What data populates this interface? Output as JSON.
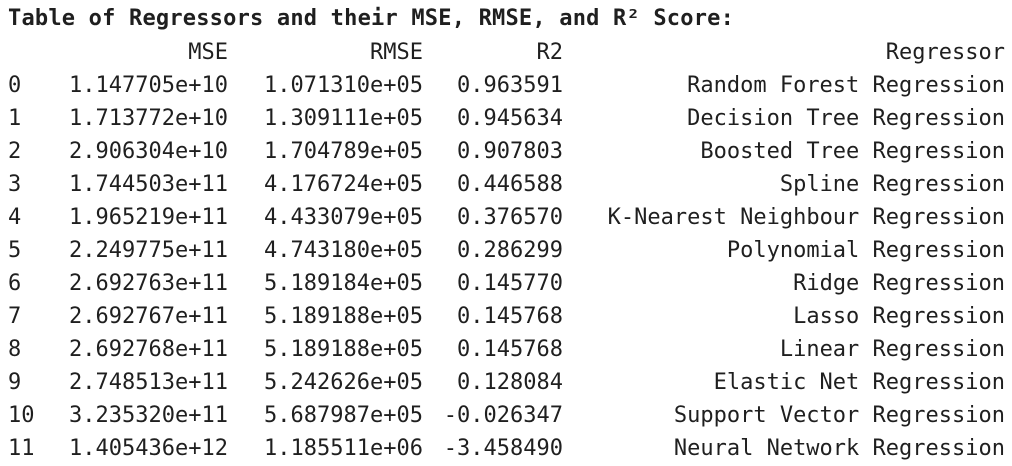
{
  "title": "Table of Regressors and their MSE, RMSE, and R² Score:",
  "table": {
    "headers": {
      "index": "",
      "mse": "MSE",
      "rmse": "RMSE",
      "r2": "R2",
      "regressor": "Regressor"
    },
    "rows": [
      {
        "index": "0",
        "mse": "1.147705e+10",
        "rmse": "1.071310e+05",
        "r2": "0.963591",
        "regressor": "Random Forest Regression"
      },
      {
        "index": "1",
        "mse": "1.713772e+10",
        "rmse": "1.309111e+05",
        "r2": "0.945634",
        "regressor": "Decision Tree Regression"
      },
      {
        "index": "2",
        "mse": "2.906304e+10",
        "rmse": "1.704789e+05",
        "r2": "0.907803",
        "regressor": "Boosted Tree Regression"
      },
      {
        "index": "3",
        "mse": "1.744503e+11",
        "rmse": "4.176724e+05",
        "r2": "0.446588",
        "regressor": "Spline Regression"
      },
      {
        "index": "4",
        "mse": "1.965219e+11",
        "rmse": "4.433079e+05",
        "r2": "0.376570",
        "regressor": "K-Nearest Neighbour Regression"
      },
      {
        "index": "5",
        "mse": "2.249775e+11",
        "rmse": "4.743180e+05",
        "r2": "0.286299",
        "regressor": "Polynomial Regression"
      },
      {
        "index": "6",
        "mse": "2.692763e+11",
        "rmse": "5.189184e+05",
        "r2": "0.145770",
        "regressor": "Ridge Regression"
      },
      {
        "index": "7",
        "mse": "2.692767e+11",
        "rmse": "5.189188e+05",
        "r2": "0.145768",
        "regressor": "Lasso Regression"
      },
      {
        "index": "8",
        "mse": "2.692768e+11",
        "rmse": "5.189188e+05",
        "r2": "0.145768",
        "regressor": "Linear Regression"
      },
      {
        "index": "9",
        "mse": "2.748513e+11",
        "rmse": "5.242626e+05",
        "r2": "0.128084",
        "regressor": "Elastic Net Regression"
      },
      {
        "index": "10",
        "mse": "3.235320e+11",
        "rmse": "5.687987e+05",
        "r2": "-0.026347",
        "regressor": "Support Vector Regression"
      },
      {
        "index": "11",
        "mse": "1.405436e+12",
        "rmse": "1.185511e+06",
        "r2": "-3.458490",
        "regressor": "Neural Network Regression"
      }
    ]
  }
}
